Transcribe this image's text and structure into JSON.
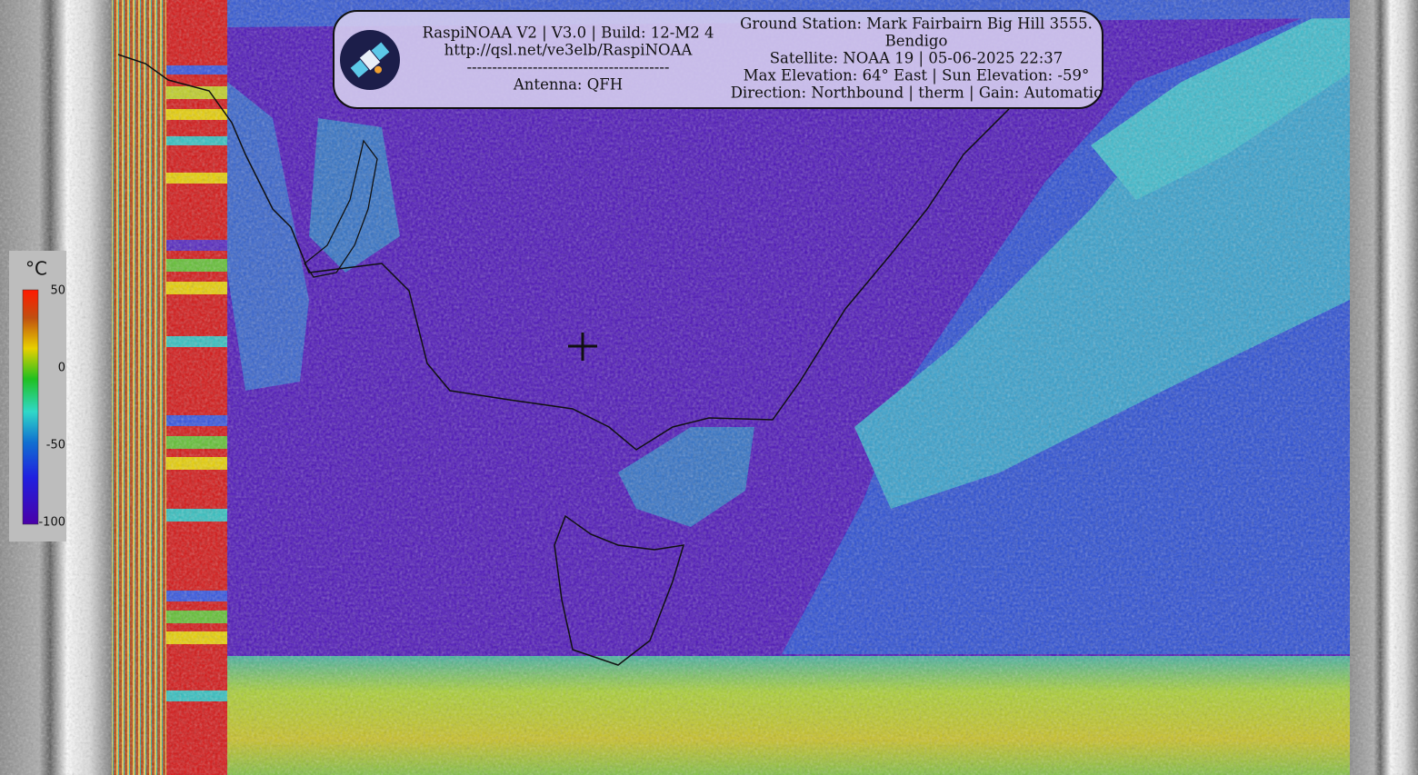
{
  "header": {
    "left": {
      "lines": [
        "RaspiNOAA V2 | V3.0 | Build: 12-M2 4",
        "http://qsl.net/ve3elb/RaspiNOAA",
        "----------------------------------------",
        "Antenna: QFH"
      ]
    },
    "right": {
      "lines": [
        "Ground Station: Mark Fairbairn Big Hill 3555.",
        "Bendigo",
        "Satellite: NOAA 19 | 05-06-2025 22:37",
        "Max Elevation: 64° East | Sun Elevation: -59°",
        "Direction: Northbound | therm | Gain: Automatic"
      ]
    }
  },
  "legend": {
    "unit": "°C",
    "ticks": [
      50,
      0,
      -50,
      -100
    ]
  }
}
